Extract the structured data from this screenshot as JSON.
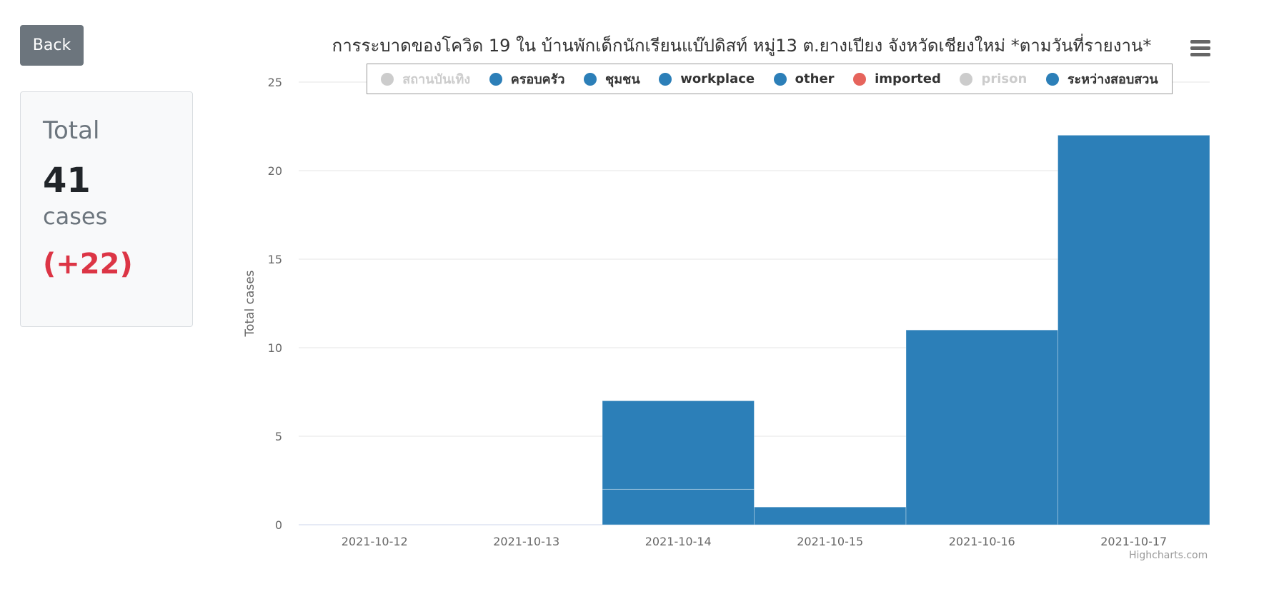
{
  "back_button": {
    "label": "Back"
  },
  "stat": {
    "title": "Total",
    "value": "41",
    "unit": "cases",
    "delta": "(+22)"
  },
  "chart_data": {
    "type": "bar",
    "title": "การระบาดของโควิด 19 ใน บ้านพักเด็กนักเรียนแบ๊ปดิสท์ หมู่13 ต.ยางเปียง จังหวัดเชียงใหม่ *ตามวันที่รายงาน*",
    "xlabel": "",
    "ylabel": "Total cases",
    "ylim": [
      0,
      25
    ],
    "yticks": [
      0,
      5,
      10,
      15,
      20,
      25
    ],
    "categories": [
      "2021-10-12",
      "2021-10-13",
      "2021-10-14",
      "2021-10-15",
      "2021-10-16",
      "2021-10-17"
    ],
    "stacked": true,
    "grid": true,
    "legend_position": "top",
    "legend": [
      {
        "name": "สถานบันเทิง",
        "color": "#cccccc",
        "visible": false
      },
      {
        "name": "ครอบครัว",
        "color": "#2c7fb8",
        "visible": true
      },
      {
        "name": "ชุมชน",
        "color": "#2c7fb8",
        "visible": true
      },
      {
        "name": "workplace",
        "color": "#2c7fb8",
        "visible": true
      },
      {
        "name": "other",
        "color": "#2c7fb8",
        "visible": true
      },
      {
        "name": "imported",
        "color": "#e6645c",
        "visible": true
      },
      {
        "name": "prison",
        "color": "#cccccc",
        "visible": false
      },
      {
        "name": "ระหว่างสอบสวน",
        "color": "#2c7fb8",
        "visible": true
      }
    ],
    "series": [
      {
        "name": "ครอบครัว",
        "color": "#2c7fb8",
        "values": [
          0,
          0,
          2,
          1,
          0,
          0
        ]
      },
      {
        "name": "ระหว่างสอบสวน",
        "color": "#2c7fb8",
        "values": [
          0,
          0,
          5,
          0,
          11,
          22
        ]
      }
    ],
    "credits": "Highcharts.com"
  },
  "menu": {
    "icon": "hamburger-menu-icon"
  }
}
